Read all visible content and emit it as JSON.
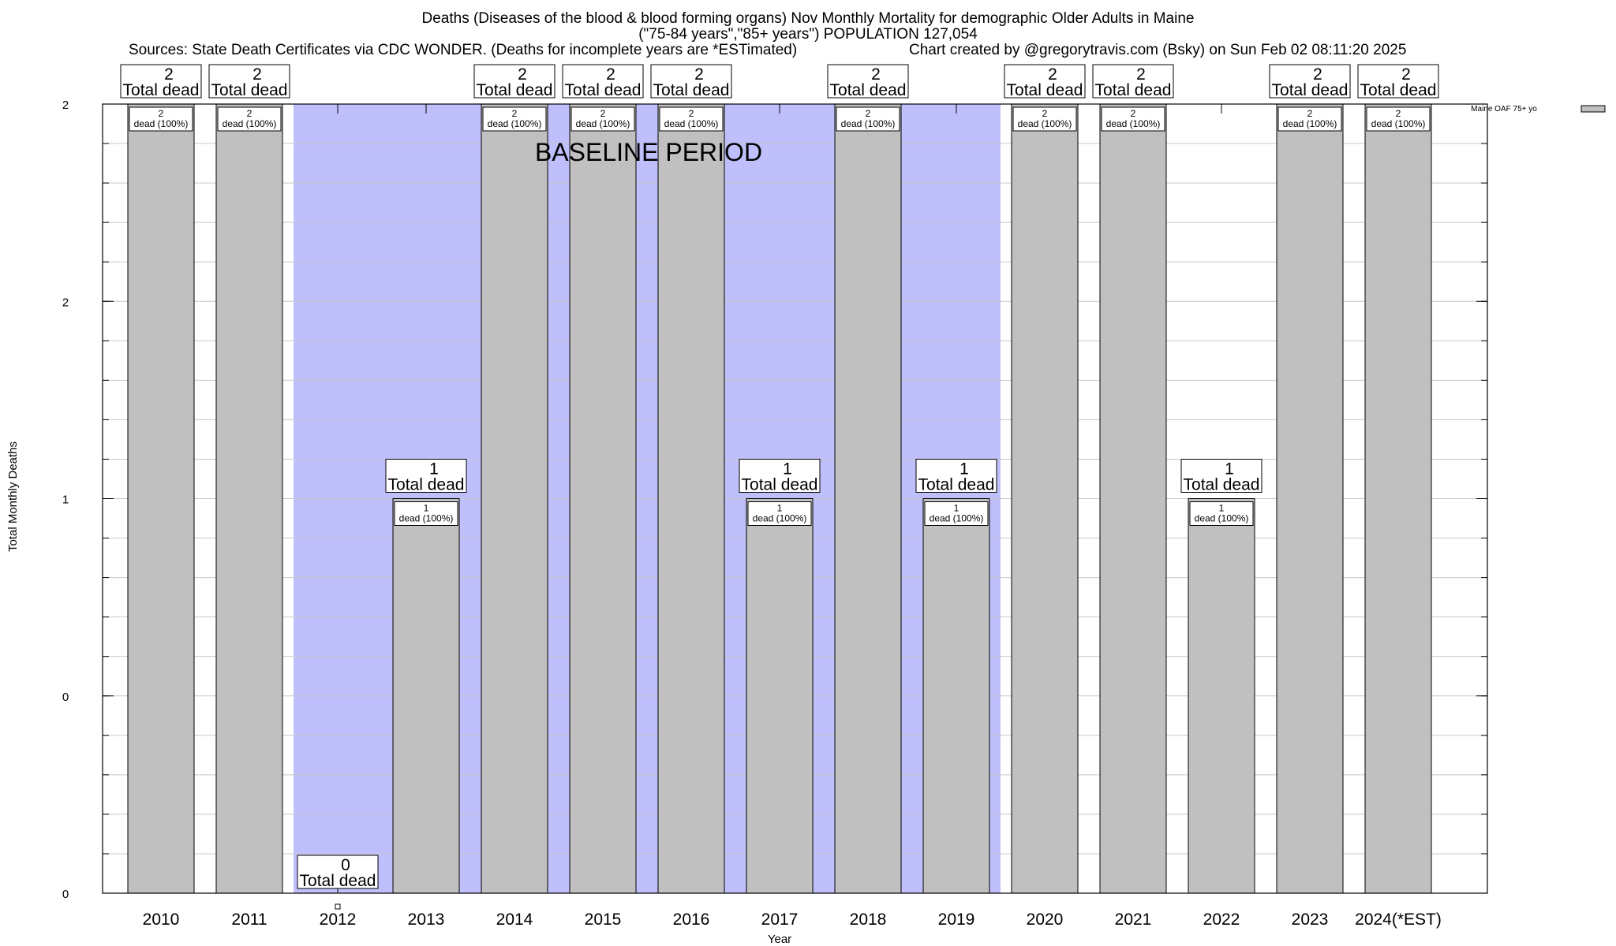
{
  "header": {
    "title_line1": "Deaths (Diseases of the blood & blood forming organs) Nov Monthly Mortality for demographic Older Adults in Maine",
    "title_line2": "(\"75-84 years\",\"85+ years\") POPULATION 127,054",
    "sources": "Sources: State Death Certificates via CDC WONDER. (Deaths for incomplete years are *ESTimated)",
    "credit": "Chart created by @gregorytravis.com (Bsky) on Sun Feb 02 08:11:20 2025"
  },
  "chart_data": {
    "type": "bar",
    "categories": [
      "2010",
      "2011",
      "2012",
      "2013",
      "2014",
      "2015",
      "2016",
      "2017",
      "2018",
      "2019",
      "2020",
      "2021",
      "2022",
      "2023",
      "2024(*EST)"
    ],
    "values": [
      2,
      2,
      0,
      1,
      2,
      2,
      2,
      1,
      2,
      1,
      2,
      2,
      1,
      2,
      2
    ],
    "series": [
      {
        "name": "Maine OAF 75+ yo",
        "values": [
          2,
          2,
          0,
          1,
          2,
          2,
          2,
          1,
          2,
          1,
          2,
          2,
          1,
          2,
          2
        ]
      }
    ],
    "xlabel": "Year",
    "ylabel": "Total Monthly Deaths",
    "ytick_labels": [
      "0",
      "0",
      "1",
      "2",
      "2"
    ],
    "ylim": [
      0,
      2
    ],
    "annotation": "BASELINE PERIOD",
    "baseline_period": [
      "2012",
      "2019"
    ],
    "top_label_suffix": "Total dead",
    "inner_label_suffix": "dead (100%)",
    "legend_position": "top-right",
    "grid": true,
    "colors": {
      "bar": "#c0c0c0",
      "baseline_shade": "#bfbffb",
      "frame": "#000000"
    }
  }
}
